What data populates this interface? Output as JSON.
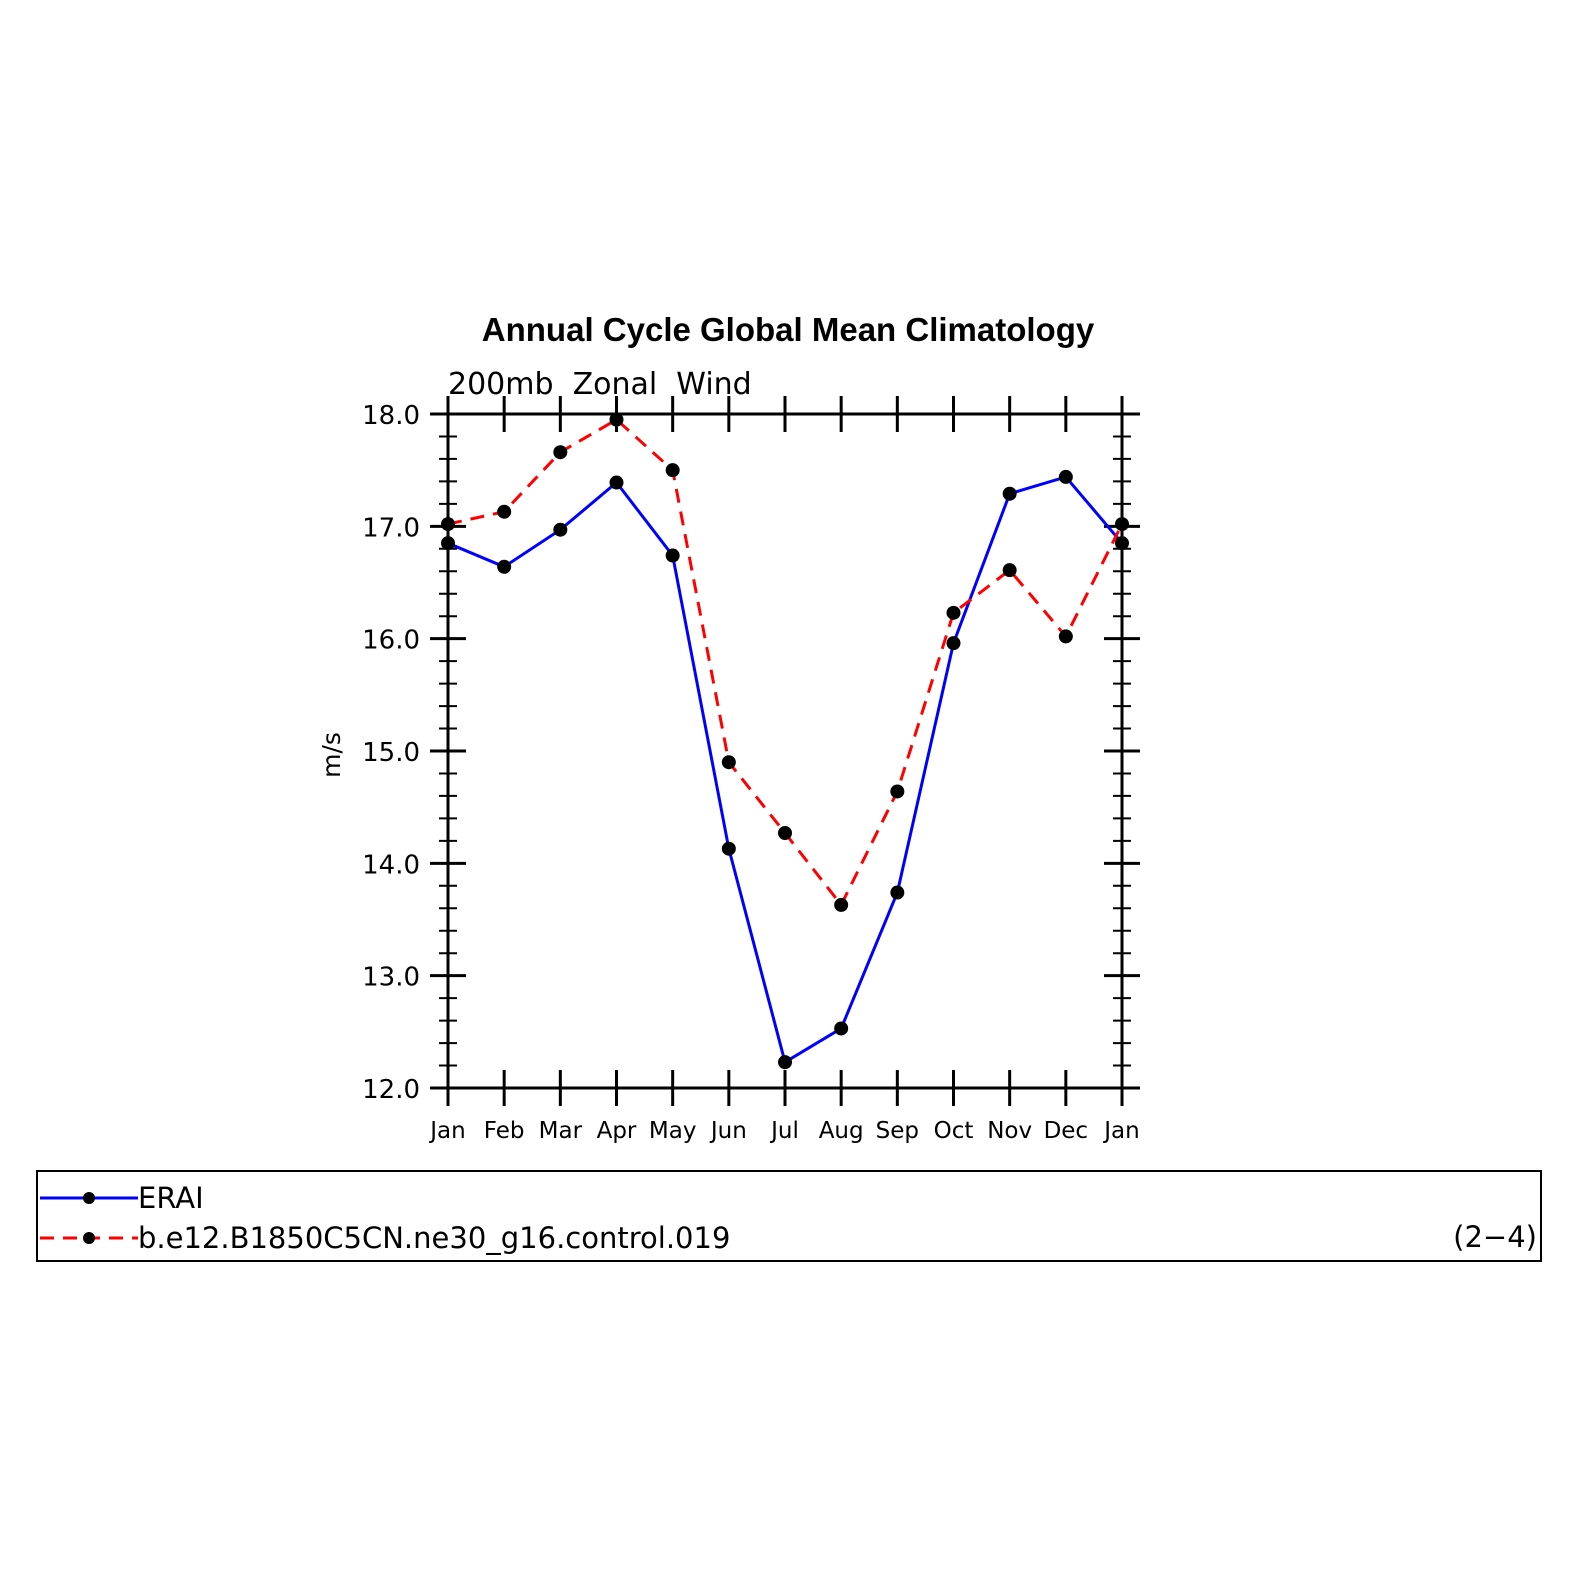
{
  "chart_data": {
    "type": "line",
    "title": "Annual Cycle Global Mean Climatology",
    "subtitle": "200mb  Zonal  Wind",
    "xlabel": "",
    "ylabel": "m/s",
    "categories": [
      "Jan",
      "Feb",
      "Mar",
      "Apr",
      "May",
      "Jun",
      "Jul",
      "Aug",
      "Sep",
      "Oct",
      "Nov",
      "Dec",
      "Jan"
    ],
    "ylim": [
      12.0,
      18.0
    ],
    "yticks": [
      "12.0",
      "13.0",
      "14.0",
      "15.0",
      "16.0",
      "17.0",
      "18.0"
    ],
    "series": [
      {
        "name": "ERAI",
        "color": "#0000ff",
        "line_style": "solid",
        "marker": "filled-circle",
        "values": [
          16.85,
          16.64,
          16.97,
          17.39,
          16.74,
          14.13,
          12.23,
          12.53,
          13.74,
          15.96,
          17.29,
          17.44,
          16.85
        ]
      },
      {
        "name": "b.e12.B1850C5CN.ne30_g16.control.019",
        "color": "#ff0000",
        "line_style": "dashed",
        "marker": "filled-circle",
        "values": [
          17.02,
          17.13,
          17.66,
          17.95,
          17.5,
          14.9,
          14.27,
          13.63,
          14.64,
          16.23,
          16.61,
          16.02,
          17.02
        ]
      }
    ],
    "legend_placement": "bottom",
    "legend_note": "(2−4)",
    "grid": false
  }
}
